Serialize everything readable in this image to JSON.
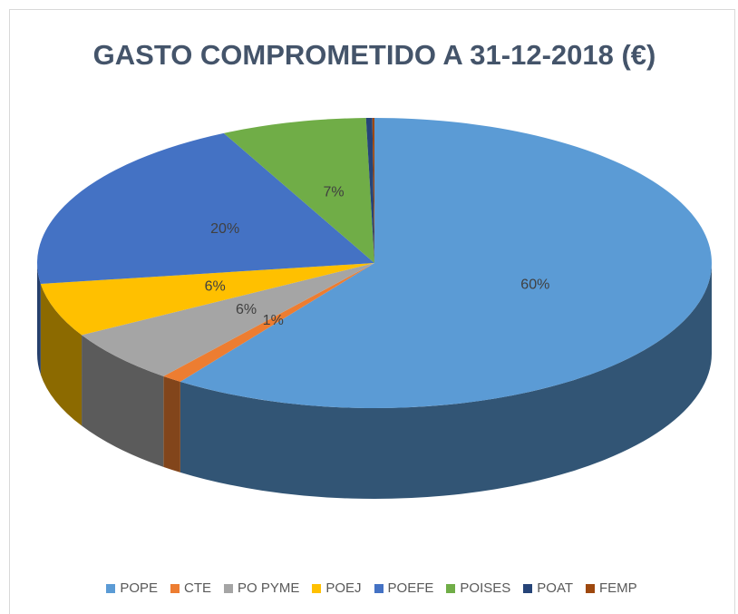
{
  "chart_data": {
    "type": "pie3d",
    "title": "GASTO COMPROMETIDO A 31-12-2018 (€)",
    "categories": [
      "POPE",
      "CTE",
      "PO PYME",
      "POEJ",
      "POEFE",
      "POISES",
      "POAT",
      "FEMP"
    ],
    "values": [
      60,
      1,
      6,
      6,
      20,
      7,
      0.3,
      0.1
    ],
    "value_labels": [
      "60%",
      "1%",
      "6%",
      "6%",
      "20%",
      "7%",
      null,
      null
    ],
    "colors": [
      "#5b9bd5",
      "#ed7d31",
      "#a5a5a5",
      "#ffc000",
      "#4472c4",
      "#70ad47",
      "#264478",
      "#9e480e"
    ],
    "legend": "bottom"
  }
}
